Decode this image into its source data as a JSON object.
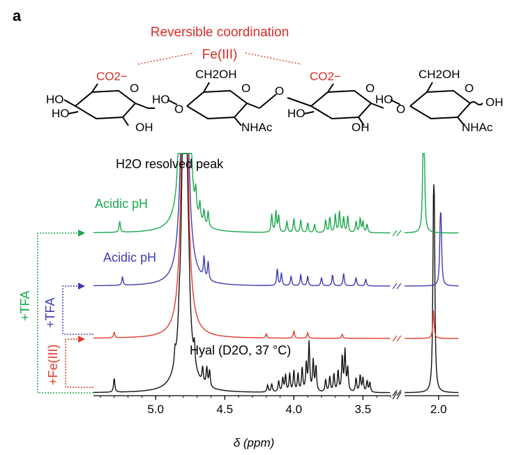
{
  "panel_label": "a",
  "structure": {
    "title": "Reversible coordination",
    "metal": "Fe(III)",
    "carboxylate": "CO2−",
    "ch2oh": "CH2OH",
    "ho": "HO",
    "oh": "OH",
    "o": "O",
    "nhac": "NHAc",
    "end_oh": "OH"
  },
  "chart_data": {
    "type": "line",
    "title": "",
    "xlabel": "δ (ppm)",
    "ylabel": "",
    "x_axis_reversed": true,
    "x_axis_break": [
      3.3,
      2.2
    ],
    "xlim_left": [
      5.45,
      3.3
    ],
    "xlim_right": [
      2.2,
      1.88
    ],
    "xticks": [
      "5.0",
      "4.5",
      "4.0",
      "3.5",
      "2.0"
    ],
    "annotations": {
      "water_peak": "H2O resolved peak",
      "trace_hyal": "Hyal (D2O, 37 °C)",
      "trace_blue": "Acidic pH",
      "trace_green": "Acidic pH"
    },
    "arrows": {
      "green": "+TFA",
      "blue": "+TFA",
      "red": "+Fe(III)"
    },
    "colors": {
      "black": "#111111",
      "red": "#e03a2a",
      "blue": "#3d3cb3",
      "green": "#19a84c"
    },
    "series": [
      {
        "color": "black",
        "peaks": [
          {
            "ppm": 5.3,
            "height": 20
          },
          {
            "ppm": 4.86,
            "height": 18
          },
          {
            "ppm": 4.83,
            "height": 22
          },
          {
            "ppm": 4.79,
            "height": 999
          },
          {
            "ppm": 4.76,
            "height": 30
          },
          {
            "ppm": 4.72,
            "height": 28
          },
          {
            "ppm": 4.66,
            "height": 22
          },
          {
            "ppm": 4.63,
            "height": 26
          },
          {
            "ppm": 4.61,
            "height": 24
          },
          {
            "ppm": 4.19,
            "height": 10
          },
          {
            "ppm": 4.16,
            "height": 12
          },
          {
            "ppm": 4.11,
            "height": 16
          },
          {
            "ppm": 4.08,
            "height": 20
          },
          {
            "ppm": 4.06,
            "height": 24
          },
          {
            "ppm": 4.03,
            "height": 26
          },
          {
            "ppm": 4.0,
            "height": 30
          },
          {
            "ppm": 3.97,
            "height": 26
          },
          {
            "ppm": 3.94,
            "height": 34
          },
          {
            "ppm": 3.91,
            "height": 40
          },
          {
            "ppm": 3.89,
            "height": 70
          },
          {
            "ppm": 3.86,
            "height": 44
          },
          {
            "ppm": 3.84,
            "height": 36
          },
          {
            "ppm": 3.77,
            "height": 18
          },
          {
            "ppm": 3.74,
            "height": 22
          },
          {
            "ppm": 3.71,
            "height": 26
          },
          {
            "ppm": 3.68,
            "height": 30
          },
          {
            "ppm": 3.65,
            "height": 50
          },
          {
            "ppm": 3.63,
            "height": 58
          },
          {
            "ppm": 3.61,
            "height": 34
          },
          {
            "ppm": 3.55,
            "height": 20
          },
          {
            "ppm": 3.52,
            "height": 24
          },
          {
            "ppm": 3.5,
            "height": 20
          },
          {
            "ppm": 3.47,
            "height": 16
          },
          {
            "ppm": 3.45,
            "height": 14
          },
          {
            "ppm": 2.03,
            "height": 200
          },
          {
            "ppm": 2.025,
            "height": 190
          }
        ]
      },
      {
        "color": "red",
        "peaks": [
          {
            "ppm": 5.3,
            "height": 8
          },
          {
            "ppm": 4.79,
            "height": 999
          },
          {
            "ppm": 4.2,
            "height": 6
          },
          {
            "ppm": 4.0,
            "height": 10
          },
          {
            "ppm": 3.9,
            "height": 8
          },
          {
            "ppm": 3.65,
            "height": 6
          },
          {
            "ppm": 2.03,
            "height": 40
          }
        ]
      },
      {
        "color": "blue",
        "peaks": [
          {
            "ppm": 5.24,
            "height": 12
          },
          {
            "ppm": 4.79,
            "height": 999
          },
          {
            "ppm": 4.65,
            "height": 30
          },
          {
            "ppm": 4.62,
            "height": 26
          },
          {
            "ppm": 4.12,
            "height": 24
          },
          {
            "ppm": 4.09,
            "height": 18
          },
          {
            "ppm": 4.02,
            "height": 14
          },
          {
            "ppm": 3.95,
            "height": 16
          },
          {
            "ppm": 3.9,
            "height": 14
          },
          {
            "ppm": 3.8,
            "height": 12
          },
          {
            "ppm": 3.72,
            "height": 16
          },
          {
            "ppm": 3.64,
            "height": 18
          },
          {
            "ppm": 3.55,
            "height": 12
          },
          {
            "ppm": 3.48,
            "height": 10
          },
          {
            "ppm": 1.99,
            "height": 70
          },
          {
            "ppm": 1.985,
            "height": 68
          }
        ]
      },
      {
        "color": "green",
        "peaks": [
          {
            "ppm": 5.26,
            "height": 16
          },
          {
            "ppm": 4.84,
            "height": 20
          },
          {
            "ppm": 4.79,
            "height": 999
          },
          {
            "ppm": 4.74,
            "height": 26
          },
          {
            "ppm": 4.71,
            "height": 30
          },
          {
            "ppm": 4.68,
            "height": 24
          },
          {
            "ppm": 4.65,
            "height": 20
          },
          {
            "ppm": 4.62,
            "height": 22
          },
          {
            "ppm": 4.16,
            "height": 26
          },
          {
            "ppm": 4.13,
            "height": 30
          },
          {
            "ppm": 4.11,
            "height": 24
          },
          {
            "ppm": 4.05,
            "height": 16
          },
          {
            "ppm": 4.0,
            "height": 20
          },
          {
            "ppm": 3.95,
            "height": 18
          },
          {
            "ppm": 3.9,
            "height": 14
          },
          {
            "ppm": 3.85,
            "height": 12
          },
          {
            "ppm": 3.77,
            "height": 18
          },
          {
            "ppm": 3.74,
            "height": 22
          },
          {
            "ppm": 3.7,
            "height": 26
          },
          {
            "ppm": 3.67,
            "height": 30
          },
          {
            "ppm": 3.64,
            "height": 22
          },
          {
            "ppm": 3.61,
            "height": 24
          },
          {
            "ppm": 3.55,
            "height": 16
          },
          {
            "ppm": 3.52,
            "height": 20
          },
          {
            "ppm": 3.5,
            "height": 16
          },
          {
            "ppm": 3.47,
            "height": 12
          },
          {
            "ppm": 2.09,
            "height": 120
          },
          {
            "ppm": 2.085,
            "height": 110
          }
        ]
      }
    ]
  }
}
